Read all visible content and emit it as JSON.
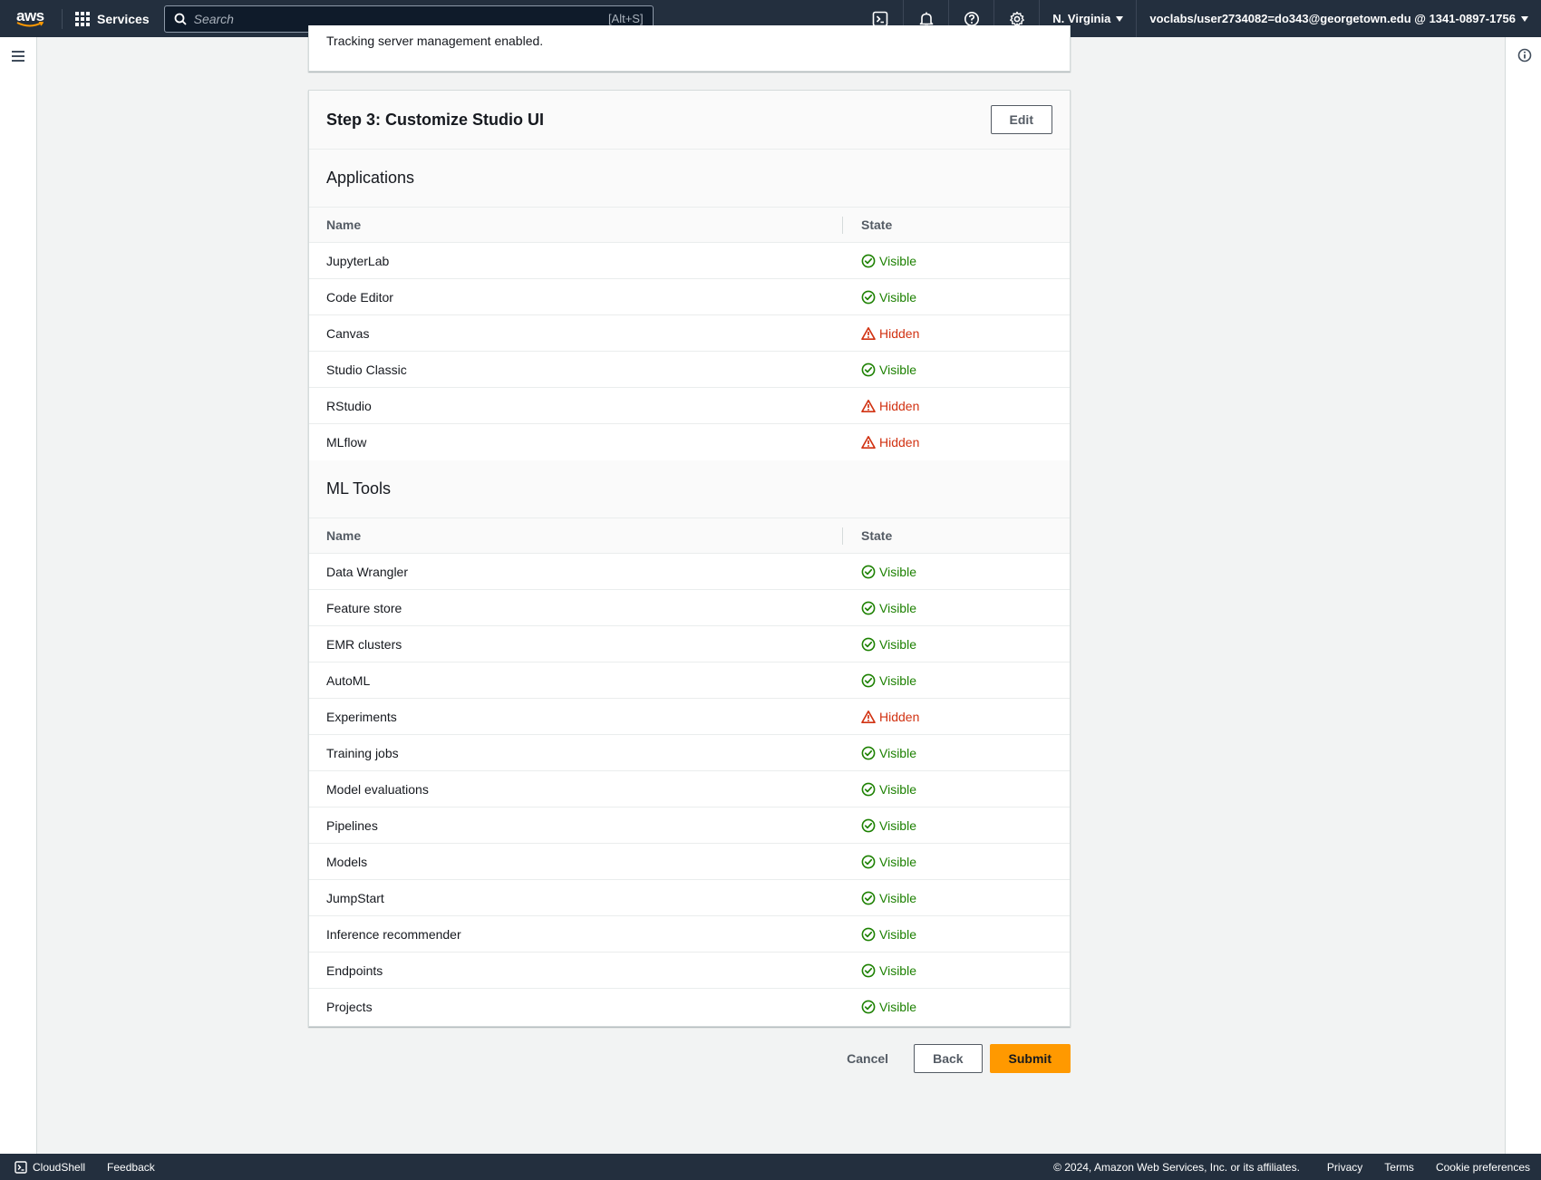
{
  "topnav": {
    "logo_text": "aws",
    "services_label": "Services",
    "search_placeholder": "Search",
    "search_shortcut": "[Alt+S]",
    "region": "N. Virginia",
    "account": "voclabs/user2734082=do343@georgetown.edu @ 1341-0897-1756"
  },
  "top_card": {
    "text": "Tracking server management enabled."
  },
  "step3": {
    "title": "Step 3: Customize Studio UI",
    "edit_label": "Edit",
    "applications": {
      "title": "Applications",
      "col_name": "Name",
      "col_state": "State",
      "rows": [
        {
          "name": "JupyterLab",
          "state": "Visible"
        },
        {
          "name": "Code Editor",
          "state": "Visible"
        },
        {
          "name": "Canvas",
          "state": "Hidden"
        },
        {
          "name": "Studio Classic",
          "state": "Visible"
        },
        {
          "name": "RStudio",
          "state": "Hidden"
        },
        {
          "name": "MLflow",
          "state": "Hidden"
        }
      ]
    },
    "ml_tools": {
      "title": "ML Tools",
      "col_name": "Name",
      "col_state": "State",
      "rows": [
        {
          "name": "Data Wrangler",
          "state": "Visible"
        },
        {
          "name": "Feature store",
          "state": "Visible"
        },
        {
          "name": "EMR clusters",
          "state": "Visible"
        },
        {
          "name": "AutoML",
          "state": "Visible"
        },
        {
          "name": "Experiments",
          "state": "Hidden"
        },
        {
          "name": "Training jobs",
          "state": "Visible"
        },
        {
          "name": "Model evaluations",
          "state": "Visible"
        },
        {
          "name": "Pipelines",
          "state": "Visible"
        },
        {
          "name": "Models",
          "state": "Visible"
        },
        {
          "name": "JumpStart",
          "state": "Visible"
        },
        {
          "name": "Inference recommender",
          "state": "Visible"
        },
        {
          "name": "Endpoints",
          "state": "Visible"
        },
        {
          "name": "Projects",
          "state": "Visible"
        }
      ]
    }
  },
  "actions": {
    "cancel": "Cancel",
    "back": "Back",
    "submit": "Submit"
  },
  "footer": {
    "cloudshell": "CloudShell",
    "feedback": "Feedback",
    "copyright": "© 2024, Amazon Web Services, Inc. or its affiliates.",
    "privacy": "Privacy",
    "terms": "Terms",
    "cookie": "Cookie preferences"
  },
  "colors": {
    "nav_bg": "#232f3e",
    "visible": "#1d8102",
    "hidden": "#d13212",
    "primary": "#ff9900"
  },
  "icons": {
    "visible": "check-circle-icon",
    "hidden": "warning-triangle-icon"
  }
}
